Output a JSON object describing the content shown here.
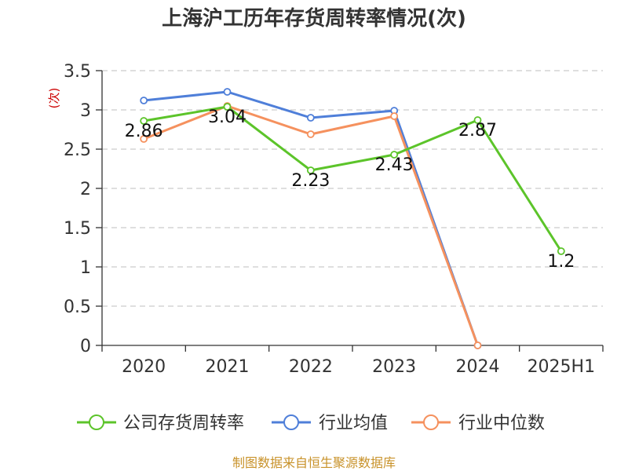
{
  "chart_data": {
    "type": "line",
    "title": "上海沪工历年存货周转率情况(次)",
    "ylabel": "(次)",
    "xlabel": "",
    "categories": [
      "2020",
      "2021",
      "2022",
      "2023",
      "2024",
      "2025H1"
    ],
    "ylim": [
      0,
      3.5
    ],
    "yticks": [
      "0",
      "0.5",
      "1",
      "1.5",
      "2",
      "2.5",
      "3",
      "3.5"
    ],
    "grid": true,
    "legend_position": "bottom",
    "series": [
      {
        "name": "公司存货周转率",
        "color": "#5cc42a",
        "values": [
          2.86,
          3.04,
          2.23,
          2.43,
          2.87,
          1.2
        ],
        "labels": [
          "2.86",
          "3.04",
          "2.23",
          "2.43",
          "2.87",
          "1.2"
        ]
      },
      {
        "name": "行业均值",
        "color": "#4f7fd9",
        "values": [
          3.12,
          3.23,
          2.9,
          2.99,
          0,
          null
        ]
      },
      {
        "name": "行业中位数",
        "color": "#f5915e",
        "values": [
          2.63,
          3.05,
          2.69,
          2.92,
          0,
          null
        ]
      }
    ],
    "source": "制图数据来自恒生聚源数据库"
  }
}
